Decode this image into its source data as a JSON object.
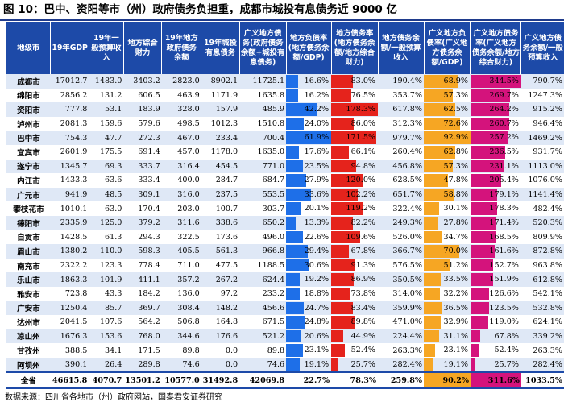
{
  "title": "图 10：巴中、资阳等市（州）政府债务负担重，成都市城投有息债务近 9000 亿",
  "source": "数据来源：四川省各地市（州）政府网站，国泰君安证券研究",
  "colors": {
    "header_bg": "#1d4aa8",
    "bar_ratio_gdp": "#1e6fe8",
    "bar_ratio_fin": "#e5231c",
    "bar_broad_gdp": "#f6a623",
    "bar_broad_fin": "#d4137c",
    "stripe": "#dfe8f6"
  },
  "chart_data": {
    "type": "table",
    "columns": [
      "地级市",
      "19年GDP",
      "19年一般预算收入",
      "地方综合财力",
      "19年地方政府债务余额",
      "19年城投有息债务",
      "广义地方债务(政府债务余额+城投有息债务)",
      "地方负债率(地方债务余额/GDP)",
      "地方债务率(地方债务余额/地方综合财力)",
      "地方债务余额/一般预算收入",
      "广义地方负债率(广义地方债务余额/GDP)",
      "广义地方债务率(广义地方债务余额/地方综合财力)",
      "广义地方债务余额/一般预算收入"
    ],
    "rows": [
      {
        "city": "成都市",
        "gdp": "17012.7",
        "budget_revenue": "1483.0",
        "fiscal_capacity": "3403.2",
        "gov_debt": "2823.0",
        "ctc_debt": "8902.1",
        "broad_debt": "11725.1",
        "debt_gdp": "16.6%",
        "debt_fin": "83.0%",
        "debt_budget": "190.4%",
        "broad_gdp": "68.9%",
        "broad_fin": "344.5%",
        "broad_budget": "790.7%"
      },
      {
        "city": "绵阳市",
        "gdp": "2856.2",
        "budget_revenue": "131.2",
        "fiscal_capacity": "606.5",
        "gov_debt": "463.9",
        "ctc_debt": "1171.9",
        "broad_debt": "1635.8",
        "debt_gdp": "16.2%",
        "debt_fin": "76.5%",
        "debt_budget": "353.7%",
        "broad_gdp": "57.3%",
        "broad_fin": "269.7%",
        "broad_budget": "1247.3%"
      },
      {
        "city": "资阳市",
        "gdp": "777.8",
        "budget_revenue": "53.1",
        "fiscal_capacity": "183.9",
        "gov_debt": "328.0",
        "ctc_debt": "157.9",
        "broad_debt": "485.9",
        "debt_gdp": "42.2%",
        "debt_fin": "178.3%",
        "debt_budget": "617.8%",
        "broad_gdp": "62.5%",
        "broad_fin": "264.2%",
        "broad_budget": "915.2%"
      },
      {
        "city": "泸州市",
        "gdp": "2081.3",
        "budget_revenue": "159.6",
        "fiscal_capacity": "579.6",
        "gov_debt": "498.5",
        "ctc_debt": "1012.3",
        "broad_debt": "1510.8",
        "debt_gdp": "24.0%",
        "debt_fin": "86.0%",
        "debt_budget": "312.3%",
        "broad_gdp": "72.6%",
        "broad_fin": "260.7%",
        "broad_budget": "946.4%"
      },
      {
        "city": "巴中市",
        "gdp": "754.3",
        "budget_revenue": "47.7",
        "fiscal_capacity": "272.3",
        "gov_debt": "467.0",
        "ctc_debt": "233.4",
        "broad_debt": "700.4",
        "debt_gdp": "61.9%",
        "debt_fin": "171.5%",
        "debt_budget": "979.7%",
        "broad_gdp": "92.9%",
        "broad_fin": "257.2%",
        "broad_budget": "1469.2%"
      },
      {
        "city": "宜宾市",
        "gdp": "2601.9",
        "budget_revenue": "175.5",
        "fiscal_capacity": "691.4",
        "gov_debt": "457.0",
        "ctc_debt": "1178.0",
        "broad_debt": "1635.0",
        "debt_gdp": "17.6%",
        "debt_fin": "66.1%",
        "debt_budget": "260.4%",
        "broad_gdp": "62.8%",
        "broad_fin": "236.5%",
        "broad_budget": "931.7%"
      },
      {
        "city": "遂宁市",
        "gdp": "1345.7",
        "budget_revenue": "69.3",
        "fiscal_capacity": "333.7",
        "gov_debt": "316.4",
        "ctc_debt": "454.5",
        "broad_debt": "771.0",
        "debt_gdp": "23.5%",
        "debt_fin": "94.8%",
        "debt_budget": "456.8%",
        "broad_gdp": "57.3%",
        "broad_fin": "231.1%",
        "broad_budget": "1113.0%"
      },
      {
        "city": "内江市",
        "gdp": "1433.3",
        "budget_revenue": "63.6",
        "fiscal_capacity": "333.4",
        "gov_debt": "400.0",
        "ctc_debt": "284.7",
        "broad_debt": "684.7",
        "debt_gdp": "27.9%",
        "debt_fin": "120.0%",
        "debt_budget": "628.5%",
        "broad_gdp": "47.8%",
        "broad_fin": "205.4%",
        "broad_budget": "1076.0%"
      },
      {
        "city": "广元市",
        "gdp": "941.9",
        "budget_revenue": "48.5",
        "fiscal_capacity": "309.1",
        "gov_debt": "316.0",
        "ctc_debt": "237.5",
        "broad_debt": "553.5",
        "debt_gdp": "33.6%",
        "debt_fin": "102.2%",
        "debt_budget": "651.7%",
        "broad_gdp": "58.8%",
        "broad_fin": "179.1%",
        "broad_budget": "1141.4%"
      },
      {
        "city": "攀枝花市",
        "gdp": "1010.1",
        "budget_revenue": "63.0",
        "fiscal_capacity": "170.4",
        "gov_debt": "203.0",
        "ctc_debt": "100.7",
        "broad_debt": "303.7",
        "debt_gdp": "20.1%",
        "debt_fin": "119.2%",
        "debt_budget": "322.4%",
        "broad_gdp": "30.1%",
        "broad_fin": "178.3%",
        "broad_budget": "482.4%"
      },
      {
        "city": "德阳市",
        "gdp": "2335.9",
        "budget_revenue": "125.0",
        "fiscal_capacity": "379.2",
        "gov_debt": "311.6",
        "ctc_debt": "338.6",
        "broad_debt": "650.2",
        "debt_gdp": "13.3%",
        "debt_fin": "82.2%",
        "debt_budget": "249.3%",
        "broad_gdp": "27.8%",
        "broad_fin": "171.4%",
        "broad_budget": "520.3%"
      },
      {
        "city": "自贡市",
        "gdp": "1428.5",
        "budget_revenue": "61.3",
        "fiscal_capacity": "294.3",
        "gov_debt": "322.5",
        "ctc_debt": "173.6",
        "broad_debt": "496.0",
        "debt_gdp": "22.6%",
        "debt_fin": "109.6%",
        "debt_budget": "526.0%",
        "broad_gdp": "34.7%",
        "broad_fin": "168.5%",
        "broad_budget": "809.9%"
      },
      {
        "city": "眉山市",
        "gdp": "1380.2",
        "budget_revenue": "110.0",
        "fiscal_capacity": "598.3",
        "gov_debt": "405.5",
        "ctc_debt": "561.3",
        "broad_debt": "966.8",
        "debt_gdp": "29.4%",
        "debt_fin": "67.8%",
        "debt_budget": "366.7%",
        "broad_gdp": "70.0%",
        "broad_fin": "161.6%",
        "broad_budget": "872.8%"
      },
      {
        "city": "南充市",
        "gdp": "2322.2",
        "budget_revenue": "123.3",
        "fiscal_capacity": "778.4",
        "gov_debt": "711.0",
        "ctc_debt": "477.5",
        "broad_debt": "1188.5",
        "debt_gdp": "30.6%",
        "debt_fin": "91.3%",
        "debt_budget": "576.5%",
        "broad_gdp": "51.2%",
        "broad_fin": "152.7%",
        "broad_budget": "963.8%"
      },
      {
        "city": "乐山市",
        "gdp": "1863.3",
        "budget_revenue": "101.9",
        "fiscal_capacity": "411.1",
        "gov_debt": "357.2",
        "ctc_debt": "267.2",
        "broad_debt": "624.4",
        "debt_gdp": "19.2%",
        "debt_fin": "86.9%",
        "debt_budget": "350.5%",
        "broad_gdp": "33.5%",
        "broad_fin": "151.9%",
        "broad_budget": "612.8%"
      },
      {
        "city": "雅安市",
        "gdp": "723.8",
        "budget_revenue": "43.3",
        "fiscal_capacity": "184.2",
        "gov_debt": "136.0",
        "ctc_debt": "97.2",
        "broad_debt": "233.2",
        "debt_gdp": "18.8%",
        "debt_fin": "73.8%",
        "debt_budget": "314.0%",
        "broad_gdp": "32.2%",
        "broad_fin": "126.6%",
        "broad_budget": "542.1%"
      },
      {
        "city": "广安市",
        "gdp": "1250.4",
        "budget_revenue": "85.7",
        "fiscal_capacity": "369.7",
        "gov_debt": "308.4",
        "ctc_debt": "148.2",
        "broad_debt": "456.6",
        "debt_gdp": "24.7%",
        "debt_fin": "83.4%",
        "debt_budget": "359.9%",
        "broad_gdp": "36.5%",
        "broad_fin": "123.5%",
        "broad_budget": "532.8%"
      },
      {
        "city": "达州市",
        "gdp": "2041.5",
        "budget_revenue": "107.6",
        "fiscal_capacity": "564.2",
        "gov_debt": "506.8",
        "ctc_debt": "164.8",
        "broad_debt": "671.5",
        "debt_gdp": "24.8%",
        "debt_fin": "89.8%",
        "debt_budget": "471.0%",
        "broad_gdp": "32.9%",
        "broad_fin": "119.0%",
        "broad_budget": "624.1%"
      },
      {
        "city": "凉山州",
        "gdp": "1676.3",
        "budget_revenue": "153.6",
        "fiscal_capacity": "768.0",
        "gov_debt": "344.6",
        "ctc_debt": "176.6",
        "broad_debt": "521.2",
        "debt_gdp": "20.6%",
        "debt_fin": "44.9%",
        "debt_budget": "224.4%",
        "broad_gdp": "31.1%",
        "broad_fin": "67.8%",
        "broad_budget": "339.2%"
      },
      {
        "city": "甘孜州",
        "gdp": "388.5",
        "budget_revenue": "34.1",
        "fiscal_capacity": "171.5",
        "gov_debt": "89.8",
        "ctc_debt": "0.0",
        "broad_debt": "89.8",
        "debt_gdp": "23.1%",
        "debt_fin": "52.4%",
        "debt_budget": "263.3%",
        "broad_gdp": "23.1%",
        "broad_fin": "52.4%",
        "broad_budget": "263.3%"
      },
      {
        "city": "阿坝州",
        "gdp": "390.1",
        "budget_revenue": "26.4",
        "fiscal_capacity": "289.8",
        "gov_debt": "74.6",
        "ctc_debt": "0.0",
        "broad_debt": "74.6",
        "debt_gdp": "19.1%",
        "debt_fin": "25.7%",
        "debt_budget": "282.4%",
        "broad_gdp": "19.1%",
        "broad_fin": "25.7%",
        "broad_budget": "282.4%"
      }
    ],
    "total": {
      "city": "全省",
      "gdp": "46615.8",
      "budget_revenue": "4070.7",
      "fiscal_capacity": "13501.2",
      "gov_debt": "10577.0",
      "ctc_debt": "31492.8",
      "broad_debt": "42069.8",
      "debt_gdp": "22.7%",
      "debt_fin": "78.3%",
      "debt_budget": "259.8%",
      "broad_gdp": "90.2%",
      "broad_fin": "311.6%",
      "broad_budget": "1033.5%"
    },
    "bar_scales": {
      "debt_gdp": 61.9,
      "debt_fin": 178.3,
      "broad_gdp": 92.9,
      "broad_fin": 344.5
    }
  }
}
